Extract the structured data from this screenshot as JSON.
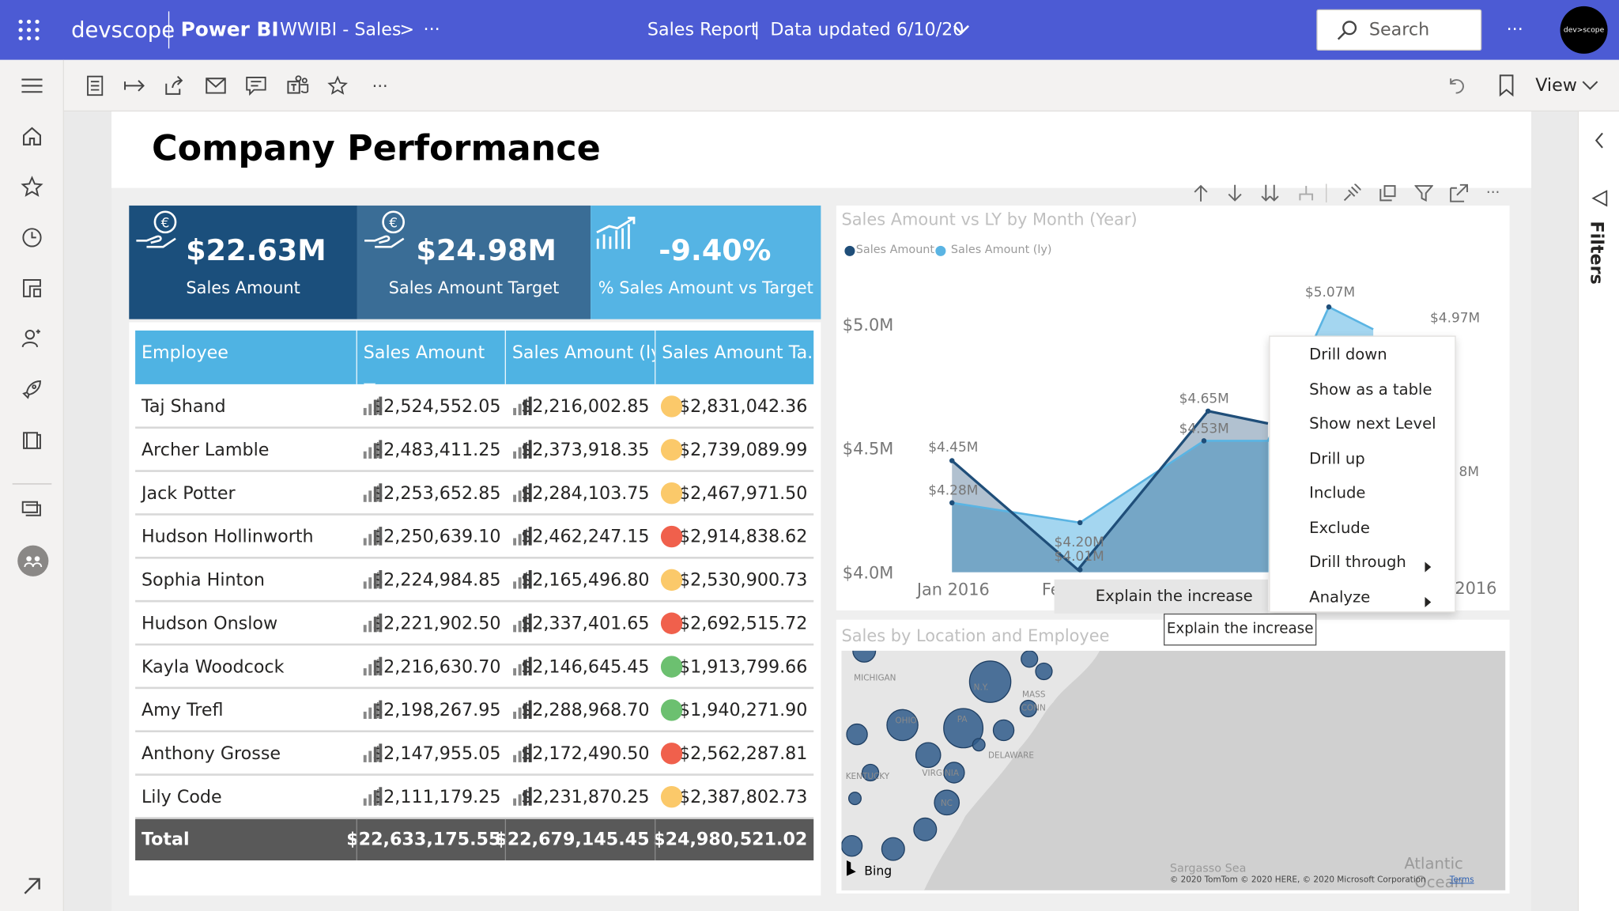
{
  "header": {
    "brand": "devscope",
    "app": "Power BI",
    "workspace": "WWIBI - Sales",
    "chevron": ">",
    "more": "···",
    "report_title": "Sales Report",
    "separator": "|",
    "data_updated": "Data updated 6/10/20",
    "search_placeholder": "Search",
    "avatar_text": "dev>scope"
  },
  "toolbar": {
    "view_label": "View"
  },
  "right_pane": {
    "filters_label": "Filters"
  },
  "page": {
    "title": "Company Performance"
  },
  "kpis": [
    {
      "value": "$22.63M",
      "label": "Sales Amount",
      "icon": "euro-hand-icon",
      "color": "#1b4f7c"
    },
    {
      "value": "$24.98M",
      "label": "Sales Amount Target",
      "icon": "euro-hand-icon",
      "color": "#3a6d96"
    },
    {
      "value": "-9.40%",
      "label": "% Sales Amount vs Target",
      "icon": "bar-growth-icon",
      "color": "#55b4e4"
    }
  ],
  "table": {
    "columns": [
      "Employee",
      "Sales Amount",
      "Sales Amount (ly)",
      "Sales Amount Ta..."
    ],
    "rows": [
      {
        "name": "Taj Shand",
        "sales": "$2,524,552.05",
        "ly": "$2,216,002.85",
        "status": "yellow",
        "target": "$2,831,042.36"
      },
      {
        "name": "Archer Lamble",
        "sales": "$2,483,411.25",
        "ly": "$2,373,918.35",
        "status": "yellow",
        "target": "$2,739,089.99"
      },
      {
        "name": "Jack Potter",
        "sales": "$2,253,652.85",
        "ly": "$2,284,103.75",
        "status": "yellow",
        "target": "$2,467,971.50"
      },
      {
        "name": "Hudson Hollinworth",
        "sales": "$2,250,639.10",
        "ly": "$2,462,247.15",
        "status": "red",
        "target": "$2,914,838.62"
      },
      {
        "name": "Sophia Hinton",
        "sales": "$2,224,984.85",
        "ly": "$2,165,496.80",
        "status": "yellow",
        "target": "$2,530,900.73"
      },
      {
        "name": "Hudson Onslow",
        "sales": "$2,221,902.50",
        "ly": "$2,337,401.65",
        "status": "red",
        "target": "$2,692,515.72"
      },
      {
        "name": "Kayla Woodcock",
        "sales": "$2,216,630.70",
        "ly": "$2,146,645.45",
        "status": "green",
        "target": "$1,913,799.66"
      },
      {
        "name": "Amy Trefl",
        "sales": "$2,198,267.95",
        "ly": "$2,288,968.70",
        "status": "green",
        "target": "$1,940,271.90"
      },
      {
        "name": "Anthony Grosse",
        "sales": "$2,147,955.05",
        "ly": "$2,172,490.50",
        "status": "red",
        "target": "$2,562,287.81"
      },
      {
        "name": "Lily Code",
        "sales": "$2,111,179.25",
        "ly": "$2,231,870.25",
        "status": "yellow",
        "target": "$2,387,802.73"
      }
    ],
    "total": {
      "label": "Total",
      "sales": "$22,633,175.55",
      "ly": "$22,679,145.45",
      "target": "$24,980,521.02"
    },
    "status_colors": {
      "yellow": "#fbc96a",
      "red": "#f0604c",
      "green": "#6cc070"
    }
  },
  "chart_data": {
    "type": "area",
    "title": "Sales Amount vs LY by Month (Year)",
    "series": [
      {
        "name": "Sales Amount",
        "color": "#1f4e79"
      },
      {
        "name": "Sales Amount (ly)",
        "color": "#5ab4e3"
      }
    ],
    "y_ticks": [
      "$5.0M",
      "$4.5M",
      "$4.0M"
    ],
    "x_ticks_visible": [
      "Jan 2016",
      "Fe",
      "2016"
    ],
    "data_labels": [
      "$5.07M",
      "$4.97M",
      "$4.65M",
      "$4.53M",
      "$4.45M",
      "$4.28M",
      "$4.20M",
      "$4.01M",
      "8M"
    ],
    "visible_points": {
      "sales_amount": [
        4.45,
        4.01,
        4.65
      ],
      "sales_amount_ly": [
        4.28,
        4.2,
        4.53,
        5.07
      ]
    }
  },
  "context_menu": {
    "items": [
      {
        "label": "Drill down",
        "submenu": false
      },
      {
        "label": "Show as a table",
        "submenu": false
      },
      {
        "label": "Show next Level",
        "submenu": false
      },
      {
        "label": "Drill up",
        "submenu": false
      },
      {
        "label": "Include",
        "submenu": false
      },
      {
        "label": "Exclude",
        "submenu": false
      },
      {
        "label": "Drill through",
        "submenu": true
      },
      {
        "label": "Analyze",
        "submenu": true
      }
    ],
    "submenu_item": "Explain the increase",
    "tooltip": "Explain the increase"
  },
  "map": {
    "title": "Sales by Location and Employee",
    "labels": [
      "MICHIGAN",
      "N.Y.",
      "MASS",
      "CONN",
      "PA",
      "OHIO",
      "KENTUCKY",
      "VIRGINIA",
      "NC",
      "DELAWARE"
    ],
    "bing": "Bing",
    "sea_label": "Sargasso Sea",
    "ocean_label_1": "Atlantic",
    "ocean_label_2": "Ocean",
    "copyright": "© 2020 TomTom © 2020 HERE, © 2020 Microsoft Corporation",
    "terms": "Terms"
  }
}
